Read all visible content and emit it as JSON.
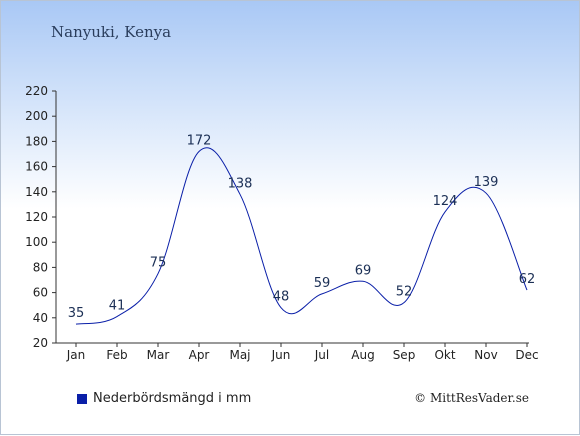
{
  "page": {
    "title": "Nanyuki, Kenya",
    "credit": "© MittResVader.se"
  },
  "colors": {
    "line": "#0a1fa8",
    "axis": "#333333"
  },
  "chart_data": {
    "type": "line",
    "title": "Nanyuki, Kenya",
    "xlabel": "",
    "ylabel": "",
    "categories": [
      "Jan",
      "Feb",
      "Mar",
      "Apr",
      "Maj",
      "Jun",
      "Jul",
      "Aug",
      "Sep",
      "Okt",
      "Nov",
      "Dec"
    ],
    "series": [
      {
        "name": "Nederbördsmängd i mm",
        "values": [
          35,
          41,
          75,
          172,
          138,
          48,
          59,
          69,
          52,
          124,
          139,
          62
        ]
      }
    ],
    "ylim": [
      20,
      220
    ],
    "yticks": [
      20,
      40,
      60,
      80,
      100,
      120,
      140,
      160,
      180,
      200,
      220
    ],
    "grid": false,
    "legend": "bottom-left"
  }
}
